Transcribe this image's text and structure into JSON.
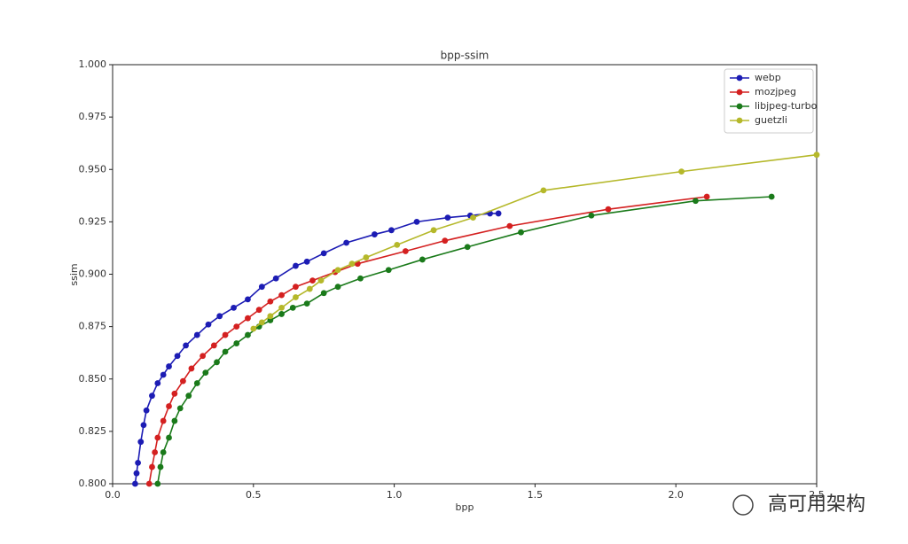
{
  "chart_data": {
    "type": "line",
    "title": "bpp-ssim",
    "x_label": "bpp",
    "y_label": "ssim",
    "xlim": [
      0,
      2.5
    ],
    "ylim": [
      0.8,
      1.0
    ],
    "xticks": [
      {
        "value": 0,
        "label": "0.0"
      },
      0.5,
      {
        "value": 1,
        "label": "1.0"
      },
      1.5,
      {
        "value": 2,
        "label": "2.0"
      },
      2.5
    ],
    "yticks": [
      {
        "value": 0.8,
        "label": "0.800"
      },
      {
        "value": 0.825,
        "label": "0.825"
      },
      {
        "value": 0.85,
        "label": "0.850"
      },
      {
        "value": 0.875,
        "label": "0.875"
      },
      {
        "value": 0.9,
        "label": "0.900"
      },
      {
        "value": 0.925,
        "label": "0.925"
      },
      {
        "value": 0.95,
        "label": "0.950"
      },
      {
        "value": 0.975,
        "label": "0.975"
      },
      {
        "value": 1,
        "label": "1.000"
      }
    ],
    "grid": false,
    "legend_position": "upper-right",
    "series": [
      {
        "name": "webp",
        "color": "#1c1cb4",
        "x": [
          0.08,
          0.085,
          0.09,
          0.1,
          0.11,
          0.12,
          0.14,
          0.16,
          0.18,
          0.2,
          0.23,
          0.26,
          0.3,
          0.34,
          0.38,
          0.43,
          0.48,
          0.53,
          0.58,
          0.65,
          0.69,
          0.75,
          0.83,
          0.93,
          0.99,
          1.08,
          1.19,
          1.27,
          1.34,
          1.37
        ],
        "values": [
          0.8,
          0.805,
          0.81,
          0.82,
          0.828,
          0.835,
          0.842,
          0.848,
          0.852,
          0.856,
          0.861,
          0.866,
          0.871,
          0.876,
          0.88,
          0.884,
          0.888,
          0.894,
          0.898,
          0.904,
          0.906,
          0.91,
          0.915,
          0.919,
          0.921,
          0.925,
          0.927,
          0.928,
          0.929,
          0.929
        ]
      },
      {
        "name": "mozjpeg",
        "color": "#d42020",
        "x": [
          0.13,
          0.14,
          0.15,
          0.16,
          0.18,
          0.2,
          0.22,
          0.25,
          0.28,
          0.32,
          0.36,
          0.4,
          0.44,
          0.48,
          0.52,
          0.56,
          0.6,
          0.65,
          0.71,
          0.79,
          0.87,
          1.04,
          1.18,
          1.41,
          1.76,
          2.11
        ],
        "values": [
          0.8,
          0.808,
          0.815,
          0.822,
          0.83,
          0.837,
          0.843,
          0.849,
          0.855,
          0.861,
          0.866,
          0.871,
          0.875,
          0.879,
          0.883,
          0.887,
          0.89,
          0.894,
          0.897,
          0.901,
          0.905,
          0.911,
          0.916,
          0.923,
          0.931,
          0.937
        ]
      },
      {
        "name": "libjpeg-turbo",
        "color": "#1a7a1a",
        "x": [
          0.16,
          0.17,
          0.18,
          0.2,
          0.22,
          0.24,
          0.27,
          0.3,
          0.33,
          0.37,
          0.4,
          0.44,
          0.48,
          0.52,
          0.56,
          0.6,
          0.64,
          0.69,
          0.75,
          0.8,
          0.88,
          0.98,
          1.1,
          1.26,
          1.45,
          1.7,
          2.07,
          2.34
        ],
        "values": [
          0.8,
          0.808,
          0.815,
          0.822,
          0.83,
          0.836,
          0.842,
          0.848,
          0.853,
          0.858,
          0.863,
          0.867,
          0.871,
          0.875,
          0.878,
          0.881,
          0.884,
          0.886,
          0.891,
          0.894,
          0.898,
          0.902,
          0.907,
          0.913,
          0.92,
          0.928,
          0.935,
          0.937
        ]
      },
      {
        "name": "guetzli",
        "color": "#b5b82a",
        "x": [
          0.5,
          0.53,
          0.56,
          0.6,
          0.65,
          0.7,
          0.74,
          0.8,
          0.85,
          0.9,
          1.01,
          1.14,
          1.28,
          1.53,
          2.02,
          2.5
        ],
        "values": [
          0.874,
          0.877,
          0.88,
          0.884,
          0.889,
          0.893,
          0.897,
          0.902,
          0.905,
          0.908,
          0.914,
          0.921,
          0.927,
          0.94,
          0.949,
          0.957
        ]
      }
    ]
  },
  "watermark": "高可用架构"
}
